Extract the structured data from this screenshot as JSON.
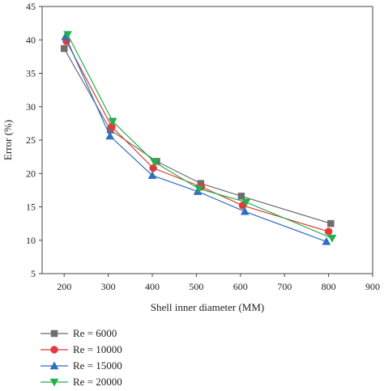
{
  "chart_data": {
    "type": "line",
    "xlabel": "Shell inner diameter (MM)",
    "ylabel": "Error (%)",
    "xlim": [
      150,
      900
    ],
    "ylim": [
      5,
      45
    ],
    "xticks": [
      200,
      300,
      400,
      500,
      600,
      700,
      800,
      900
    ],
    "yticks": [
      5,
      10,
      15,
      20,
      25,
      30,
      35,
      40,
      45
    ],
    "grid": false,
    "legend_position": "below-left",
    "series": [
      {
        "name": "Re = 6000",
        "color": "#6e6e6e",
        "marker": "square",
        "x": [
          200,
          305,
          410,
          510,
          602,
          805
        ],
        "y": [
          38.7,
          26.5,
          21.8,
          18.5,
          16.6,
          12.5
        ]
      },
      {
        "name": "Re = 10000",
        "color": "#e03a3a",
        "marker": "circle",
        "x": [
          205,
          308,
          402,
          511,
          605,
          800
        ],
        "y": [
          39.8,
          27.0,
          20.8,
          18.0,
          15.2,
          11.3
        ]
      },
      {
        "name": "Re = 15000",
        "color": "#2f6fc0",
        "marker": "triangle-up",
        "x": [
          203,
          304,
          400,
          503,
          610,
          795
        ],
        "y": [
          40.5,
          25.6,
          19.7,
          17.3,
          14.3,
          9.8
        ]
      },
      {
        "name": "Re = 20000",
        "color": "#22b04a",
        "marker": "triangle-down",
        "x": [
          208,
          310,
          405,
          506,
          613,
          808
        ],
        "y": [
          40.8,
          27.8,
          21.7,
          17.7,
          15.7,
          10.3
        ]
      }
    ]
  }
}
